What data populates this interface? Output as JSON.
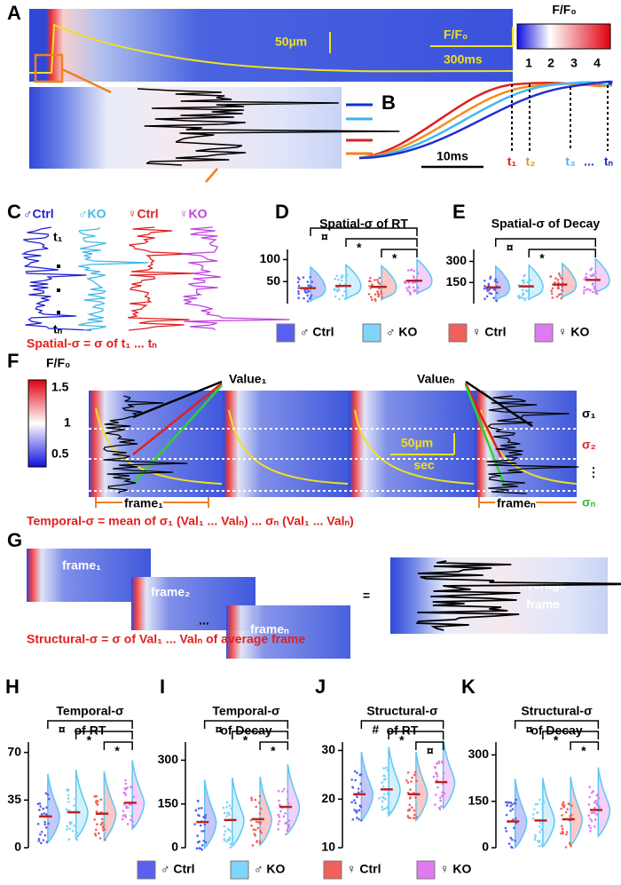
{
  "panel_labels": [
    "A",
    "B",
    "C",
    "D",
    "E",
    "F",
    "G",
    "H",
    "I",
    "J",
    "K"
  ],
  "panel_a": {
    "colorbar_title": "F/F₀",
    "colorbar_ticks": [
      "1",
      "2",
      "3",
      "4"
    ],
    "scale_bar": "50µm",
    "box_labels": [
      "F/F₀",
      "300ms"
    ]
  },
  "panel_b": {
    "time_scale": "10ms",
    "time_labels": [
      "t₁",
      "t₂",
      "t₃",
      "...",
      "tₙ"
    ]
  },
  "panel_c": {
    "groups": [
      "♂Ctrl",
      "♂KO",
      "♀Ctrl",
      "♀KO"
    ],
    "row_labels": [
      "t₁",
      "tₙ"
    ],
    "formula": "Spatial-σ = σ of t₁ ... tₙ"
  },
  "panel_f": {
    "colorbar_title": "F/F₀",
    "colorbar_ticks": [
      "1.5",
      "1",
      "0.5"
    ],
    "value_labels": [
      "Value₁",
      "Valueₙ"
    ],
    "sigma_labels": [
      "σ₁",
      "σ₂",
      "⋮",
      "σₙ"
    ],
    "frame_labels": [
      "frame₁",
      "frameₙ"
    ],
    "scale_labels": [
      "50µm",
      "sec"
    ],
    "formula": "Temporal-σ = mean of σ₁ (Val₁ ... Valₙ) ... σₙ (Val₁ ... Valₙ)"
  },
  "panel_g": {
    "frames": [
      "frame₁",
      "frame₂",
      "frameₙ"
    ],
    "ellipsis": "...",
    "equals": "=",
    "average": [
      "average",
      "frame"
    ],
    "formula": "Structural-σ = σ of Val₁ ... Valₙ of average frame"
  },
  "legend": [
    {
      "name": "♂ Ctrl",
      "color": "#5a5ff0"
    },
    {
      "name": "♂ KO",
      "color": "#7fd4f7"
    },
    {
      "name": "♀ Ctrl",
      "color": "#f0605c"
    },
    {
      "name": "♀ KO",
      "color": "#e07af0"
    }
  ],
  "chart_data": [
    {
      "type": "violin",
      "title": [
        "Spatial-σ of RT"
      ],
      "values": [
        35,
        40,
        38,
        52
      ],
      "ylim": [
        0,
        115
      ],
      "yticks": [
        50,
        100
      ],
      "annotations": [
        "¤",
        "*",
        "*"
      ]
    },
    {
      "type": "violin",
      "title": [
        "Spatial-σ of Decay"
      ],
      "values": [
        115,
        122,
        135,
        168
      ],
      "ylim": [
        0,
        360
      ],
      "yticks": [
        150,
        300
      ],
      "annotations": [
        "¤",
        "*"
      ]
    },
    {
      "type": "violin",
      "title": [
        "Temporal-σ",
        "of RT"
      ],
      "values": [
        23,
        26,
        25,
        33
      ],
      "ylim": [
        0,
        75
      ],
      "yticks": [
        0,
        35,
        70
      ],
      "annotations": [
        "¤",
        "*",
        "*"
      ]
    },
    {
      "type": "violin",
      "title": [
        "Temporal-σ",
        "of Decay"
      ],
      "values": [
        88,
        95,
        98,
        140
      ],
      "ylim": [
        0,
        350
      ],
      "yticks": [
        0,
        150,
        300
      ],
      "annotations": [
        "¤",
        "*",
        "*"
      ]
    },
    {
      "type": "violin",
      "title": [
        "Structural-σ",
        "of RT"
      ],
      "values": [
        21,
        22,
        21,
        23.5
      ],
      "ylim": [
        10,
        31
      ],
      "yticks": [
        10,
        20,
        30
      ],
      "annotations": [
        "#",
        "*",
        "¤"
      ]
    },
    {
      "type": "violin",
      "title": [
        "Structural-σ",
        "of Decay"
      ],
      "values": [
        85,
        88,
        92,
        122
      ],
      "ylim": [
        0,
        330
      ],
      "yticks": [
        0,
        150,
        300
      ],
      "annotations": [
        "¤",
        "*",
        "*"
      ]
    }
  ]
}
